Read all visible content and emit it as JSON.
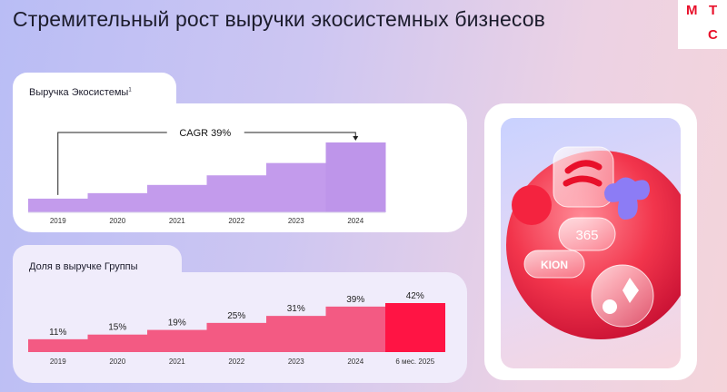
{
  "header": {
    "title": "Стремительный рост выручки экосистемных бизнесов",
    "logo_letters": [
      "М",
      "Т",
      "С"
    ]
  },
  "colors": {
    "brand_red": "#E8102A",
    "revenue_bar": "#C39BEC",
    "revenue_bar_top": "#BE95EA",
    "share_bar": "#F35A83",
    "share_bar_highlight": "#FF1444"
  },
  "revenue_panel": {
    "title": "Выручка Экосистемы",
    "footnote": "1",
    "cagr_label": "CAGR 39%"
  },
  "share_panel": {
    "title": "Доля в выручке Группы"
  },
  "app_card": {
    "icons": [
      "kinopoisk-icon",
      "red-circle-icon",
      "plus-star-icon",
      "365-pill-icon",
      "kion-pill-icon",
      "music-circle-icon"
    ],
    "labels": {
      "p365": "365",
      "kion": "KION"
    }
  },
  "chart_data": [
    {
      "type": "bar",
      "categories": [
        "2019",
        "2020",
        "2021",
        "2022",
        "2023",
        "2024"
      ],
      "values": [
        1.0,
        1.4,
        2.0,
        2.7,
        3.6,
        5.1
      ],
      "title": "Выручка Экосистемы",
      "annotations": [
        "CAGR 39%"
      ],
      "xlabel": "",
      "ylabel": "",
      "ylim": [
        0,
        5.1
      ],
      "grid": false,
      "legend": "none"
    },
    {
      "type": "bar",
      "categories": [
        "2019",
        "2020",
        "2021",
        "2022",
        "2023",
        "2024",
        "6 мес. 2025"
      ],
      "values": [
        11,
        15,
        19,
        25,
        31,
        39,
        42
      ],
      "data_labels": [
        "11%",
        "15%",
        "19%",
        "25%",
        "31%",
        "39%",
        "42%"
      ],
      "title": "Доля в выручке Группы",
      "xlabel": "",
      "ylabel": "",
      "ylim": [
        0,
        42
      ],
      "grid": false,
      "legend": "none"
    }
  ]
}
